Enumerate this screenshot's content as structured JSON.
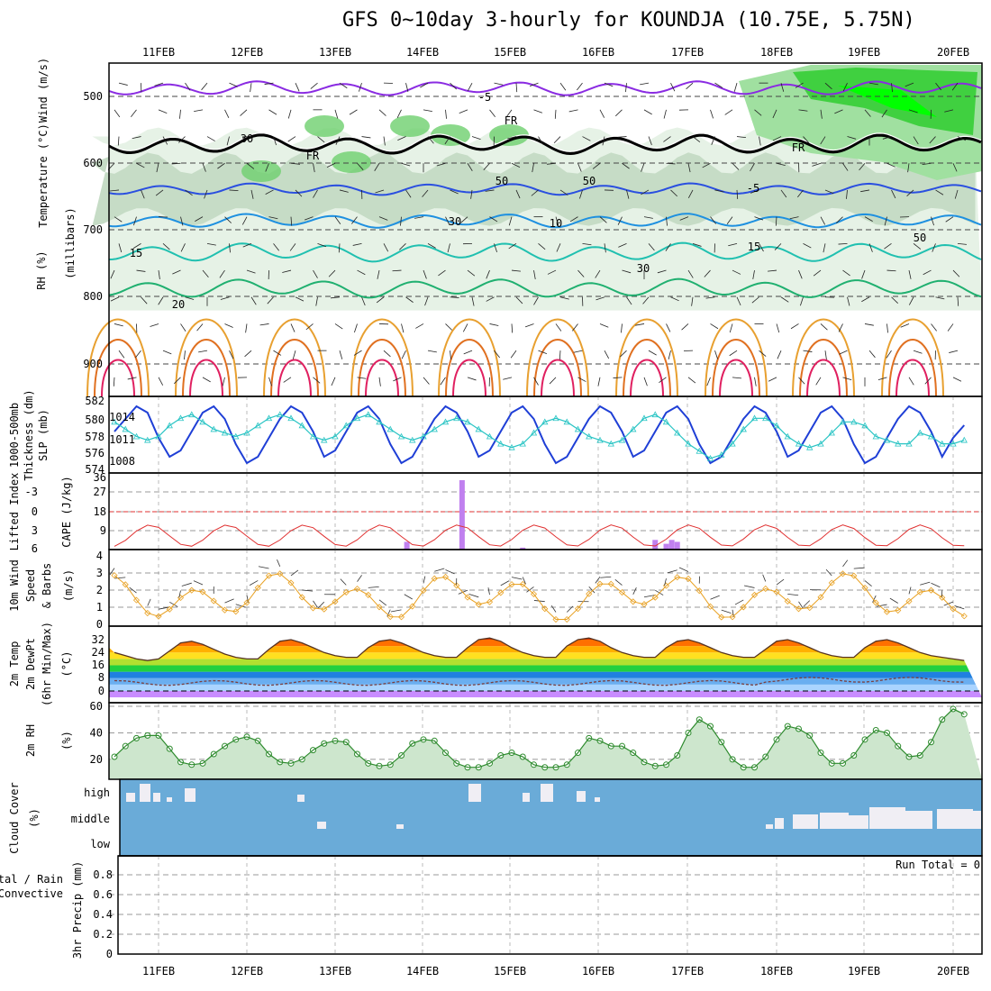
{
  "title": "GFS 0~10day 3-hourly for KOUNDJA (10.75E, 5.75N)",
  "days": [
    "11FEB",
    "12FEB",
    "13FEB",
    "14FEB",
    "15FEB",
    "16FEB",
    "17FEB",
    "18FEB",
    "19FEB",
    "20FEB"
  ],
  "colors": {
    "frame": "#000000",
    "grid": "#999999",
    "cloud_bg": "#6aabd8",
    "cloud_white": "#f0eef4",
    "rh_green": "#3fbf3f",
    "slp": "#1f3fd6",
    "thickness": "#28c4c4",
    "lifted": "#e03030",
    "cape": "#c080ef",
    "wind10": "#e8a020",
    "dewpt": "#7a4040",
    "rh2m": "#2e8b2e"
  },
  "panels": {
    "upper": {
      "ylabel_wind": "Wind (m/s)",
      "ylabel_temp": "Temperature (°C)",
      "ylabel_rh": "RH (%)",
      "ylabel_unit": "(millibars)",
      "yticks": [
        "500",
        "600",
        "700",
        "800",
        "900"
      ],
      "labels": [
        "-5",
        "FR",
        "FR",
        "FR",
        "-5",
        "10",
        "15",
        "15",
        "20",
        "30",
        "30",
        "50",
        "50",
        "30",
        "50"
      ]
    },
    "slp": {
      "ylabel1": "1000-500mb",
      "ylabel2": "Thickness (dm)",
      "ylabel3": "SLP (mb)",
      "left_ticks": [
        "582",
        "580",
        "578",
        "576",
        "574"
      ],
      "right_ticks": [
        "1014",
        "1011",
        "1008"
      ]
    },
    "cape": {
      "ylabel1": "Lifted Index",
      "ylabel2": "CAPE (J/kg)",
      "left_ticks": [
        "-3",
        "0",
        "3",
        "6"
      ],
      "right_ticks": [
        "36",
        "27",
        "18",
        "9"
      ]
    },
    "wind": {
      "ylabel1": "10m Wind",
      "ylabel2": "Speed",
      "ylabel3": "& Barbs",
      "ylabel4": "(m/s)",
      "yticks": [
        "4",
        "3",
        "2",
        "1",
        "0"
      ]
    },
    "temp": {
      "ylabel1": "2m Temp",
      "ylabel2": "2m DewPt",
      "ylabel3": "(6hr Min/Max)",
      "ylabel4": "(°C)",
      "yticks": [
        "32",
        "24",
        "16",
        "8",
        "0"
      ]
    },
    "rh2m": {
      "ylabel1": "2m RH",
      "ylabel2": "(%)",
      "yticks": [
        "60",
        "40",
        "20"
      ]
    },
    "cloud": {
      "ylabel1": "Cloud Cover",
      "ylabel2": "(%)",
      "levels": [
        "high",
        "middle",
        "low"
      ]
    },
    "precip": {
      "ylabel1": "Total / Rain",
      "ylabel2": "Convective",
      "ylabel3": "3hr Precip (mm)",
      "yticks": [
        "0.8",
        "0.6",
        "0.4",
        "0.2",
        "0"
      ],
      "run_total": "Run Total = 0"
    }
  },
  "chart_data": [
    {
      "type": "line",
      "name": "SLP",
      "y_unit": "mb",
      "x_step_hours": 3,
      "values": [
        1013,
        1009,
        1012,
        1014,
        1016,
        1015,
        1011,
        1008,
        1009,
        1012,
        1015,
        1016,
        1014,
        1010,
        1007,
        1008,
        1011,
        1014,
        1016,
        1015,
        1012,
        1008,
        1009,
        1012,
        1015,
        1016,
        1014,
        1010,
        1007,
        1008,
        1011,
        1014,
        1016,
        1015,
        1012,
        1008,
        1009,
        1012,
        1015,
        1016,
        1014,
        1010,
        1007,
        1008,
        1011,
        1014,
        1016,
        1015,
        1012,
        1008,
        1009,
        1012,
        1015,
        1016,
        1014,
        1010,
        1007,
        1008,
        1011,
        1014,
        1016,
        1015,
        1012,
        1008,
        1009,
        1012,
        1015,
        1016,
        1014,
        1010,
        1007,
        1008,
        1011,
        1014,
        1016,
        1015,
        1012,
        1008,
        1011,
        1013
      ]
    },
    {
      "type": "line",
      "name": "Thickness",
      "y_unit": "dm",
      "x_step_hours": 3,
      "values": [
        580,
        580.5,
        580,
        579,
        578,
        577.5,
        578,
        579.5,
        580.5,
        581,
        580,
        579,
        578.5,
        578,
        578.5,
        579.5,
        580.5,
        581,
        580.5,
        579.5,
        578,
        577.5,
        578,
        579.5,
        580.5,
        581,
        580,
        579,
        578,
        577.5,
        578,
        579,
        580,
        580.5,
        580,
        579,
        578,
        577,
        576.5,
        577,
        578.5,
        580,
        580.5,
        580,
        579,
        578,
        577.5,
        577,
        577.5,
        579,
        580.5,
        581,
        580,
        578.5,
        577,
        576,
        575,
        575.5,
        577,
        579,
        580.5,
        580.5,
        579.5,
        578,
        577,
        576.5,
        577,
        578.5,
        580,
        580,
        579.5,
        578,
        577.5,
        577,
        577,
        578.5,
        578,
        577,
        577,
        577.5
      ]
    },
    {
      "type": "line",
      "name": "2m RH",
      "y_unit": "%",
      "x_step_hours": 3,
      "values": [
        19,
        19,
        22,
        30,
        36,
        38,
        38,
        28,
        18,
        16,
        17,
        24,
        30,
        35,
        37,
        34,
        24,
        18,
        17,
        20,
        27,
        32,
        34,
        33,
        24,
        17,
        15,
        16,
        23,
        32,
        35,
        34,
        25,
        17,
        14,
        14,
        17,
        23,
        25,
        22,
        16,
        14,
        14,
        16,
        25,
        36,
        34,
        30,
        30,
        25,
        18,
        15,
        16,
        23,
        40,
        50,
        45,
        33,
        20,
        14,
        14,
        22,
        35,
        45,
        43,
        38,
        25,
        17,
        17,
        23,
        35,
        42,
        40,
        30,
        22,
        23,
        33,
        50,
        58,
        54
      ]
    },
    {
      "type": "bar",
      "name": "CAPE",
      "y_unit": "J/kg",
      "bars": [
        {
          "x_index": 57,
          "value": 4
        },
        {
          "x_index": 67,
          "value": 36
        },
        {
          "x_index": 78,
          "value": 1
        },
        {
          "x_index": 102,
          "value": 5
        },
        {
          "x_index": 104,
          "value": 3
        },
        {
          "x_index": 105,
          "value": 5
        },
        {
          "x_index": 106,
          "value": 4
        }
      ]
    },
    {
      "type": "area",
      "name": "2m Temp",
      "y_unit": "°C",
      "values": [
        29,
        27,
        24,
        22,
        20,
        19,
        20,
        25,
        30,
        31,
        29,
        26,
        23,
        21,
        20,
        20,
        26,
        31,
        32,
        30,
        27,
        24,
        22,
        21,
        21,
        27,
        31,
        32,
        30,
        27,
        24,
        22,
        21,
        21,
        27,
        32,
        33,
        31,
        27,
        24,
        22,
        21,
        21,
        28,
        32,
        33,
        31,
        27,
        24,
        22,
        21,
        21,
        27,
        31,
        32,
        30,
        27,
        24,
        22,
        21,
        21,
        26,
        31,
        32,
        30,
        27,
        24,
        22,
        21,
        21,
        27,
        31,
        32,
        30,
        27,
        24,
        22,
        21,
        20,
        19
      ]
    }
  ]
}
